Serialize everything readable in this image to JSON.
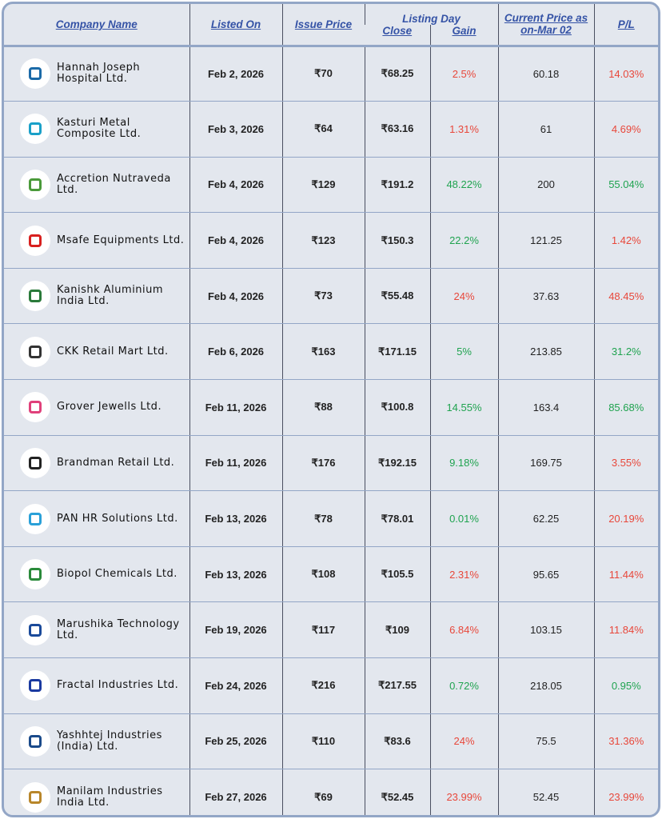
{
  "headers": {
    "company": "Company Name",
    "listed": "Listed On",
    "issue": "Issue Price",
    "listing_day": "Listing Day",
    "close": "Close",
    "gain": "Gain",
    "current": "Current Price as on-Mar 02",
    "pl": "P/L"
  },
  "colors": {
    "loss": "#e8473a",
    "profit": "#1fa34f",
    "header": "#3553a6",
    "border": "#93a6c6"
  },
  "rows": [
    {
      "name": "Hannah Joseph Hospital Ltd.",
      "listed": "Feb 2, 2026",
      "issue": "₹70",
      "close": "₹68.25",
      "gain": "2.5%",
      "gain_sign": "loss",
      "current": "60.18",
      "pl": "14.03%",
      "pl_sign": "loss",
      "logo_color": "#1b6aa8"
    },
    {
      "name": "Kasturi Metal Composite Ltd.",
      "listed": "Feb 3, 2026",
      "issue": "₹64",
      "close": "₹63.16",
      "gain": "1.31%",
      "gain_sign": "loss",
      "current": "61",
      "pl": "4.69%",
      "pl_sign": "loss",
      "logo_color": "#1aa0c8"
    },
    {
      "name": "Accretion Nutraveda Ltd.",
      "listed": "Feb 4, 2026",
      "issue": "₹129",
      "close": "₹191.2",
      "gain": "48.22%",
      "gain_sign": "profit",
      "current": "200",
      "pl": "55.04%",
      "pl_sign": "profit",
      "logo_color": "#4a9a3a"
    },
    {
      "name": "Msafe Equipments Ltd.",
      "listed": "Feb 4, 2026",
      "issue": "₹123",
      "close": "₹150.3",
      "gain": "22.2%",
      "gain_sign": "profit",
      "current": "121.25",
      "pl": "1.42%",
      "pl_sign": "loss",
      "logo_color": "#d8201f"
    },
    {
      "name": "Kanishk Aluminium India Ltd.",
      "listed": "Feb 4, 2026",
      "issue": "₹73",
      "close": "₹55.48",
      "gain": "24%",
      "gain_sign": "loss",
      "current": "37.63",
      "pl": "48.45%",
      "pl_sign": "loss",
      "logo_color": "#2a7a3a"
    },
    {
      "name": "CKK Retail Mart Ltd.",
      "listed": "Feb 6, 2026",
      "issue": "₹163",
      "close": "₹171.15",
      "gain": "5%",
      "gain_sign": "profit",
      "current": "213.85",
      "pl": "31.2%",
      "pl_sign": "profit",
      "logo_color": "#333"
    },
    {
      "name": "Grover Jewells Ltd.",
      "listed": "Feb 11, 2026",
      "issue": "₹88",
      "close": "₹100.8",
      "gain": "14.55%",
      "gain_sign": "profit",
      "current": "163.4",
      "pl": "85.68%",
      "pl_sign": "profit",
      "logo_color": "#e0407a"
    },
    {
      "name": "Brandman Retail Ltd.",
      "listed": "Feb 11, 2026",
      "issue": "₹176",
      "close": "₹192.15",
      "gain": "9.18%",
      "gain_sign": "profit",
      "current": "169.75",
      "pl": "3.55%",
      "pl_sign": "loss",
      "logo_color": "#222"
    },
    {
      "name": "PAN HR Solutions Ltd.",
      "listed": "Feb 13, 2026",
      "issue": "₹78",
      "close": "₹78.01",
      "gain": "0.01%",
      "gain_sign": "profit",
      "current": "62.25",
      "pl": "20.19%",
      "pl_sign": "loss",
      "logo_color": "#2aa0d8"
    },
    {
      "name": "Biopol Chemicals Ltd.",
      "listed": "Feb 13, 2026",
      "issue": "₹108",
      "close": "₹105.5",
      "gain": "2.31%",
      "gain_sign": "loss",
      "current": "95.65",
      "pl": "11.44%",
      "pl_sign": "loss",
      "logo_color": "#2a8a3a"
    },
    {
      "name": "Marushika Technology Ltd.",
      "listed": "Feb 19, 2026",
      "issue": "₹117",
      "close": "₹109",
      "gain": "6.84%",
      "gain_sign": "loss",
      "current": "103.15",
      "pl": "11.84%",
      "pl_sign": "loss",
      "logo_color": "#1a4a9a"
    },
    {
      "name": "Fractal Industries Ltd.",
      "listed": "Feb 24, 2026",
      "issue": "₹216",
      "close": "₹217.55",
      "gain": "0.72%",
      "gain_sign": "profit",
      "current": "218.05",
      "pl": "0.95%",
      "pl_sign": "profit",
      "logo_color": "#1a3aa0"
    },
    {
      "name": "Yashhtej Industries (India) Ltd.",
      "listed": "Feb 25, 2026",
      "issue": "₹110",
      "close": "₹83.6",
      "gain": "24%",
      "gain_sign": "loss",
      "current": "75.5",
      "pl": "31.36%",
      "pl_sign": "loss",
      "logo_color": "#1a4a8a"
    },
    {
      "name": "Manilam Industries India Ltd.",
      "listed": "Feb 27, 2026",
      "issue": "₹69",
      "close": "₹52.45",
      "gain": "23.99%",
      "gain_sign": "loss",
      "current": "52.45",
      "pl": "23.99%",
      "pl_sign": "loss",
      "logo_color": "#b8862a"
    }
  ]
}
